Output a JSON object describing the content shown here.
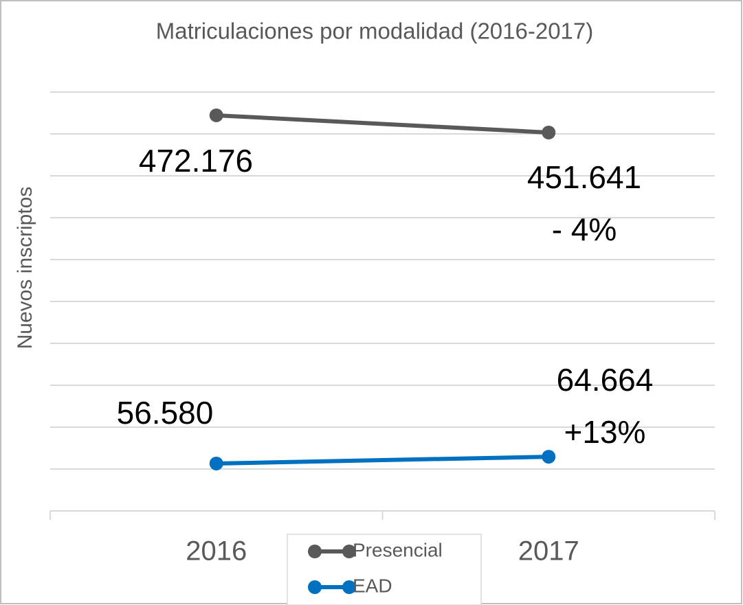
{
  "chart_data": {
    "type": "line",
    "title": "Matriculaciones por modalidad (2016-2017)",
    "y_label": "Nuevos inscriptos",
    "categories": [
      "2016",
      "2017"
    ],
    "series": [
      {
        "name": "Presencial",
        "color": "#595959",
        "values": [
          472176,
          451641
        ],
        "value_labels": [
          "472.176",
          "451.641"
        ]
      },
      {
        "name": "EAD",
        "color": "#0070c0",
        "values": [
          56580,
          64664
        ],
        "value_labels": [
          "56.580",
          "64.664"
        ]
      }
    ],
    "annotations": [
      "- 4%",
      "+13%"
    ],
    "ylim": [
      0,
      500000
    ],
    "yticks": [
      0,
      50000,
      100000,
      150000,
      200000,
      250000,
      300000,
      350000,
      400000,
      450000,
      500000
    ],
    "grid": true,
    "legend": "bottom"
  }
}
